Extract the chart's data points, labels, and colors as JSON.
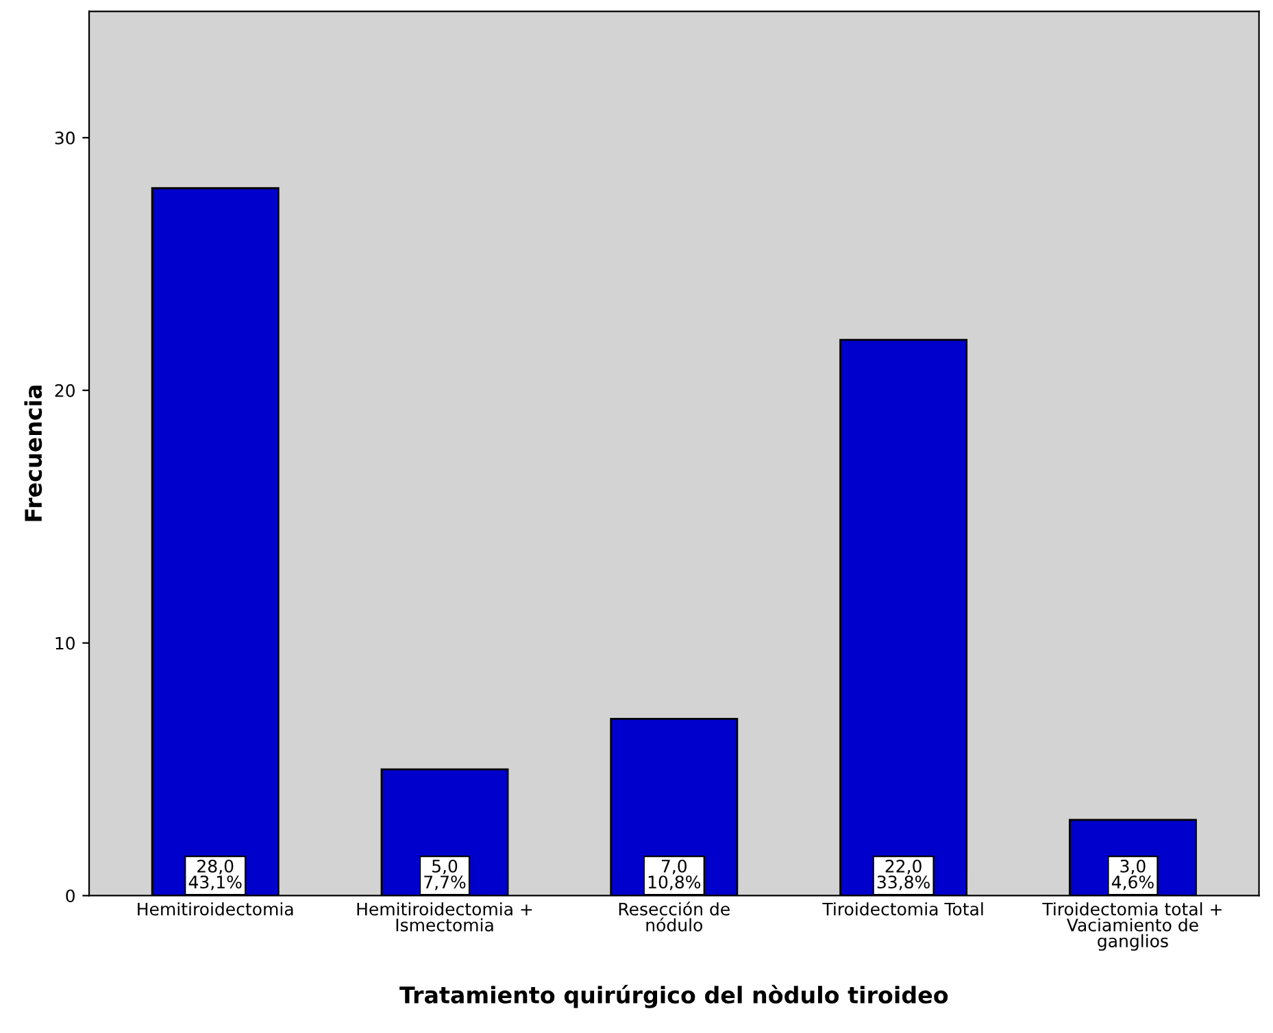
{
  "chart_data": {
    "type": "bar",
    "xlabel": "Tratamiento quirúrgico del nòdulo tiroideo",
    "ylabel": "Frecuencia",
    "categories": [
      "Hemitiroidectomia",
      "Hemitiroidectomia +\nIsmectomia",
      "Resección de\nnódulo",
      "Tiroidectomia Total",
      "Tiroidectomia total +\nVaciamiento de\nganglios"
    ],
    "values": [
      28,
      5,
      7,
      22,
      3
    ],
    "value_labels": [
      "28,0\n43,1%",
      "5,0\n7,7%",
      "7,0\n10,8%",
      "22,0\n33,8%",
      "3,0\n4,6%"
    ],
    "color": "#0000cc",
    "ylim": [
      0,
      35
    ],
    "yticks": [
      0,
      10,
      20,
      30
    ],
    "grid": false
  }
}
